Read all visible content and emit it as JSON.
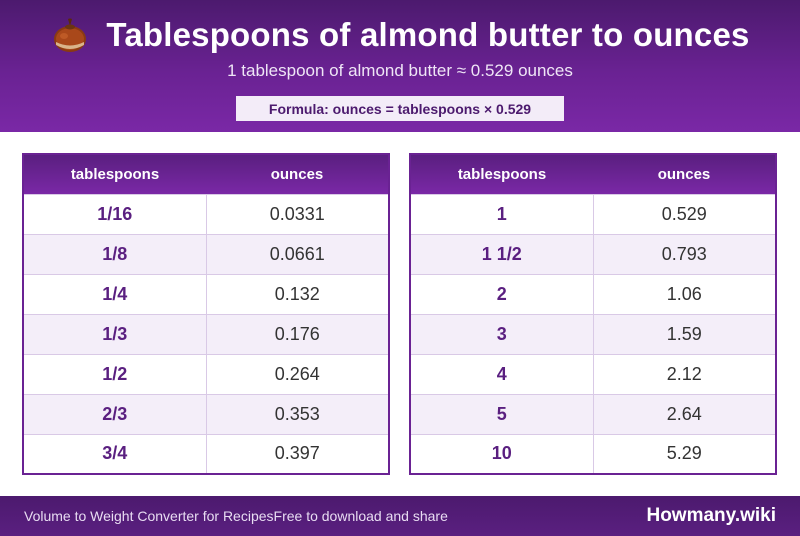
{
  "header": {
    "icon": "chestnut-icon",
    "title": "Tablespoons of almond butter to ounces",
    "subtitle": "1 tablespoon of almond butter ≈ 0.529 ounces",
    "formula": "Formula: ounces = tablespoons × 0.529"
  },
  "tables": [
    {
      "columns": [
        "tablespoons",
        "ounces"
      ],
      "rows": [
        [
          "1/16",
          "0.0331"
        ],
        [
          "1/8",
          "0.0661"
        ],
        [
          "1/4",
          "0.132"
        ],
        [
          "1/3",
          "0.176"
        ],
        [
          "1/2",
          "0.264"
        ],
        [
          "2/3",
          "0.353"
        ],
        [
          "3/4",
          "0.397"
        ]
      ]
    },
    {
      "columns": [
        "tablespoons",
        "ounces"
      ],
      "rows": [
        [
          "1",
          "0.529"
        ],
        [
          "1 1/2",
          "0.793"
        ],
        [
          "2",
          "1.06"
        ],
        [
          "3",
          "1.59"
        ],
        [
          "4",
          "2.12"
        ],
        [
          "5",
          "2.64"
        ],
        [
          "10",
          "5.29"
        ]
      ]
    }
  ],
  "footer": {
    "left": "Volume to Weight Converter for Recipes",
    "middle": "Free to download and share",
    "brand": "Howmany.wiki"
  },
  "colors": {
    "header_purple": "#6a2293",
    "dark_purple": "#4c1a6e",
    "row_alt": "#f4eef9"
  }
}
